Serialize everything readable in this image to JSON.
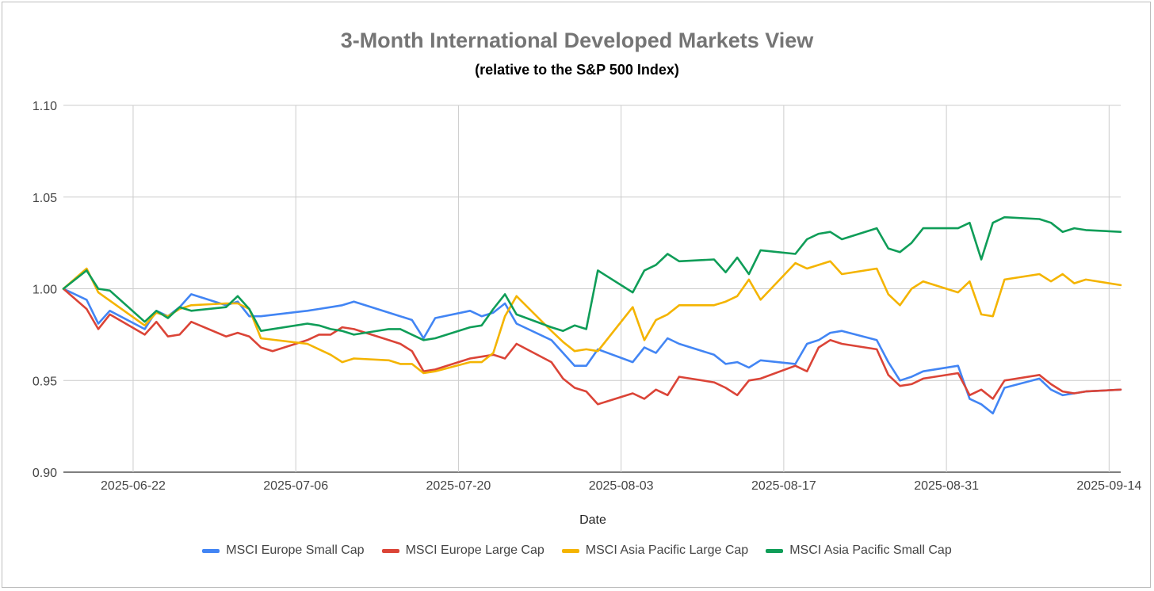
{
  "chart_data": {
    "type": "line",
    "title": "3-Month International Developed Markets View",
    "subtitle": "(relative to the S&P 500 Index)",
    "xlabel": "Date",
    "ylabel": "",
    "ylim": [
      0.9,
      1.1
    ],
    "yticks": [
      "0.90",
      "0.95",
      "1.00",
      "1.05",
      "1.10"
    ],
    "xticks": [
      "2025-06-22",
      "2025-07-06",
      "2025-07-20",
      "2025-08-03",
      "2025-08-17",
      "2025-08-31",
      "2025-09-14"
    ],
    "x_start": "2025-06-16",
    "x_end": "2025-09-15",
    "grid": true,
    "legend_position": "bottom",
    "series": [
      {
        "name": "MSCI Europe Small Cap",
        "color": "#4285f4",
        "x": [
          "2025-06-16",
          "2025-06-18",
          "2025-06-19",
          "2025-06-20",
          "2025-06-23",
          "2025-06-24",
          "2025-06-25",
          "2025-06-26",
          "2025-06-27",
          "2025-06-30",
          "2025-07-01",
          "2025-07-02",
          "2025-07-03",
          "2025-07-07",
          "2025-07-08",
          "2025-07-09",
          "2025-07-10",
          "2025-07-11",
          "2025-07-14",
          "2025-07-15",
          "2025-07-16",
          "2025-07-17",
          "2025-07-18",
          "2025-07-21",
          "2025-07-22",
          "2025-07-23",
          "2025-07-24",
          "2025-07-25",
          "2025-07-28",
          "2025-07-29",
          "2025-07-30",
          "2025-07-31",
          "2025-08-01",
          "2025-08-04",
          "2025-08-05",
          "2025-08-06",
          "2025-08-07",
          "2025-08-08",
          "2025-08-11",
          "2025-08-12",
          "2025-08-13",
          "2025-08-14",
          "2025-08-15",
          "2025-08-18",
          "2025-08-19",
          "2025-08-20",
          "2025-08-21",
          "2025-08-22",
          "2025-08-25",
          "2025-08-26",
          "2025-08-27",
          "2025-08-28",
          "2025-08-29",
          "2025-09-01",
          "2025-09-02",
          "2025-09-03",
          "2025-09-04",
          "2025-09-05",
          "2025-09-08",
          "2025-09-09",
          "2025-09-10",
          "2025-09-11",
          "2025-09-12",
          "2025-09-15"
        ],
        "values": [
          1.0,
          0.994,
          0.981,
          0.988,
          0.978,
          0.988,
          0.985,
          0.99,
          0.997,
          0.991,
          0.993,
          0.985,
          0.985,
          0.988,
          0.989,
          0.99,
          0.991,
          0.993,
          0.987,
          0.985,
          0.983,
          0.973,
          0.984,
          0.988,
          0.985,
          0.987,
          0.992,
          0.981,
          0.972,
          0.965,
          0.958,
          0.958,
          0.967,
          0.96,
          0.968,
          0.965,
          0.973,
          0.97,
          0.964,
          0.959,
          0.96,
          0.957,
          0.961,
          0.959,
          0.97,
          0.972,
          0.976,
          0.977,
          0.972,
          0.96,
          0.95,
          0.952,
          0.955,
          0.958,
          0.94,
          0.937,
          0.932,
          0.946,
          0.951,
          0.945,
          0.942,
          0.943,
          0.944,
          0.945
        ]
      },
      {
        "name": "MSCI Europe Large Cap",
        "color": "#db4437",
        "x": [
          "2025-06-16",
          "2025-06-18",
          "2025-06-19",
          "2025-06-20",
          "2025-06-23",
          "2025-06-24",
          "2025-06-25",
          "2025-06-26",
          "2025-06-27",
          "2025-06-30",
          "2025-07-01",
          "2025-07-02",
          "2025-07-03",
          "2025-07-04",
          "2025-07-07",
          "2025-07-08",
          "2025-07-09",
          "2025-07-10",
          "2025-07-11",
          "2025-07-14",
          "2025-07-15",
          "2025-07-16",
          "2025-07-17",
          "2025-07-18",
          "2025-07-21",
          "2025-07-22",
          "2025-07-23",
          "2025-07-24",
          "2025-07-25",
          "2025-07-28",
          "2025-07-29",
          "2025-07-30",
          "2025-07-31",
          "2025-08-01",
          "2025-08-04",
          "2025-08-05",
          "2025-08-06",
          "2025-08-07",
          "2025-08-08",
          "2025-08-11",
          "2025-08-12",
          "2025-08-13",
          "2025-08-14",
          "2025-08-15",
          "2025-08-18",
          "2025-08-19",
          "2025-08-20",
          "2025-08-21",
          "2025-08-22",
          "2025-08-25",
          "2025-08-26",
          "2025-08-27",
          "2025-08-28",
          "2025-08-29",
          "2025-09-01",
          "2025-09-02",
          "2025-09-03",
          "2025-09-04",
          "2025-09-05",
          "2025-09-08",
          "2025-09-09",
          "2025-09-10",
          "2025-09-11",
          "2025-09-12",
          "2025-09-15"
        ],
        "values": [
          1.0,
          0.989,
          0.978,
          0.986,
          0.975,
          0.982,
          0.974,
          0.975,
          0.982,
          0.974,
          0.976,
          0.974,
          0.968,
          0.966,
          0.972,
          0.975,
          0.975,
          0.979,
          0.978,
          0.972,
          0.97,
          0.966,
          0.955,
          0.956,
          0.962,
          0.963,
          0.964,
          0.962,
          0.97,
          0.96,
          0.951,
          0.946,
          0.944,
          0.937,
          0.943,
          0.94,
          0.945,
          0.942,
          0.952,
          0.949,
          0.946,
          0.942,
          0.95,
          0.951,
          0.958,
          0.955,
          0.968,
          0.972,
          0.97,
          0.967,
          0.953,
          0.947,
          0.948,
          0.951,
          0.954,
          0.942,
          0.945,
          0.94,
          0.95,
          0.953,
          0.948,
          0.944,
          0.943,
          0.944,
          0.945
        ]
      },
      {
        "name": "MSCI Asia Pacific Large Cap",
        "color": "#f4b400",
        "x": [
          "2025-06-16",
          "2025-06-18",
          "2025-06-19",
          "2025-06-23",
          "2025-06-24",
          "2025-06-25",
          "2025-06-26",
          "2025-06-27",
          "2025-06-30",
          "2025-07-01",
          "2025-07-02",
          "2025-07-03",
          "2025-07-07",
          "2025-07-08",
          "2025-07-09",
          "2025-07-10",
          "2025-07-11",
          "2025-07-14",
          "2025-07-15",
          "2025-07-16",
          "2025-07-17",
          "2025-07-18",
          "2025-07-21",
          "2025-07-22",
          "2025-07-23",
          "2025-07-24",
          "2025-07-25",
          "2025-07-28",
          "2025-07-29",
          "2025-07-30",
          "2025-07-31",
          "2025-08-01",
          "2025-08-04",
          "2025-08-05",
          "2025-08-06",
          "2025-08-07",
          "2025-08-08",
          "2025-08-11",
          "2025-08-12",
          "2025-08-13",
          "2025-08-14",
          "2025-08-15",
          "2025-08-18",
          "2025-08-19",
          "2025-08-20",
          "2025-08-21",
          "2025-08-22",
          "2025-08-25",
          "2025-08-26",
          "2025-08-27",
          "2025-08-28",
          "2025-08-29",
          "2025-09-01",
          "2025-09-02",
          "2025-09-03",
          "2025-09-04",
          "2025-09-05",
          "2025-09-08",
          "2025-09-09",
          "2025-09-10",
          "2025-09-11",
          "2025-09-12",
          "2025-09-15"
        ],
        "values": [
          1.0,
          1.011,
          0.998,
          0.98,
          0.987,
          0.985,
          0.989,
          0.991,
          0.992,
          0.992,
          0.989,
          0.973,
          0.97,
          0.967,
          0.964,
          0.96,
          0.962,
          0.961,
          0.959,
          0.959,
          0.954,
          0.955,
          0.96,
          0.96,
          0.965,
          0.985,
          0.996,
          0.977,
          0.971,
          0.966,
          0.967,
          0.966,
          0.99,
          0.972,
          0.983,
          0.986,
          0.991,
          0.991,
          0.993,
          0.996,
          1.005,
          0.994,
          1.014,
          1.011,
          1.013,
          1.015,
          1.008,
          1.011,
          0.997,
          0.991,
          1.0,
          1.004,
          0.998,
          1.004,
          0.986,
          0.985,
          1.005,
          1.008,
          1.004,
          1.008,
          1.003,
          1.005,
          1.002
        ]
      },
      {
        "name": "MSCI Asia Pacific Small Cap",
        "color": "#0f9d58",
        "x": [
          "2025-06-16",
          "2025-06-18",
          "2025-06-19",
          "2025-06-20",
          "2025-06-23",
          "2025-06-24",
          "2025-06-25",
          "2025-06-26",
          "2025-06-27",
          "2025-06-30",
          "2025-07-01",
          "2025-07-02",
          "2025-07-03",
          "2025-07-07",
          "2025-07-08",
          "2025-07-09",
          "2025-07-10",
          "2025-07-11",
          "2025-07-14",
          "2025-07-15",
          "2025-07-16",
          "2025-07-17",
          "2025-07-18",
          "2025-07-21",
          "2025-07-22",
          "2025-07-23",
          "2025-07-24",
          "2025-07-25",
          "2025-07-28",
          "2025-07-29",
          "2025-07-30",
          "2025-07-31",
          "2025-08-01",
          "2025-08-04",
          "2025-08-05",
          "2025-08-06",
          "2025-08-07",
          "2025-08-08",
          "2025-08-11",
          "2025-08-12",
          "2025-08-13",
          "2025-08-14",
          "2025-08-15",
          "2025-08-18",
          "2025-08-19",
          "2025-08-20",
          "2025-08-21",
          "2025-08-22",
          "2025-08-25",
          "2025-08-26",
          "2025-08-27",
          "2025-08-28",
          "2025-08-29",
          "2025-09-01",
          "2025-09-02",
          "2025-09-03",
          "2025-09-04",
          "2025-09-05",
          "2025-09-08",
          "2025-09-09",
          "2025-09-10",
          "2025-09-11",
          "2025-09-12",
          "2025-09-15"
        ],
        "values": [
          1.0,
          1.01,
          1.0,
          0.999,
          0.982,
          0.988,
          0.984,
          0.99,
          0.988,
          0.99,
          0.996,
          0.989,
          0.977,
          0.981,
          0.98,
          0.978,
          0.977,
          0.975,
          0.978,
          0.978,
          0.975,
          0.972,
          0.973,
          0.979,
          0.98,
          0.989,
          0.997,
          0.986,
          0.979,
          0.977,
          0.98,
          0.978,
          1.01,
          0.998,
          1.01,
          1.013,
          1.019,
          1.015,
          1.016,
          1.009,
          1.017,
          1.008,
          1.021,
          1.019,
          1.027,
          1.03,
          1.031,
          1.027,
          1.033,
          1.022,
          1.02,
          1.025,
          1.033,
          1.033,
          1.036,
          1.016,
          1.036,
          1.039,
          1.038,
          1.036,
          1.031,
          1.033,
          1.032,
          1.031
        ]
      }
    ]
  }
}
